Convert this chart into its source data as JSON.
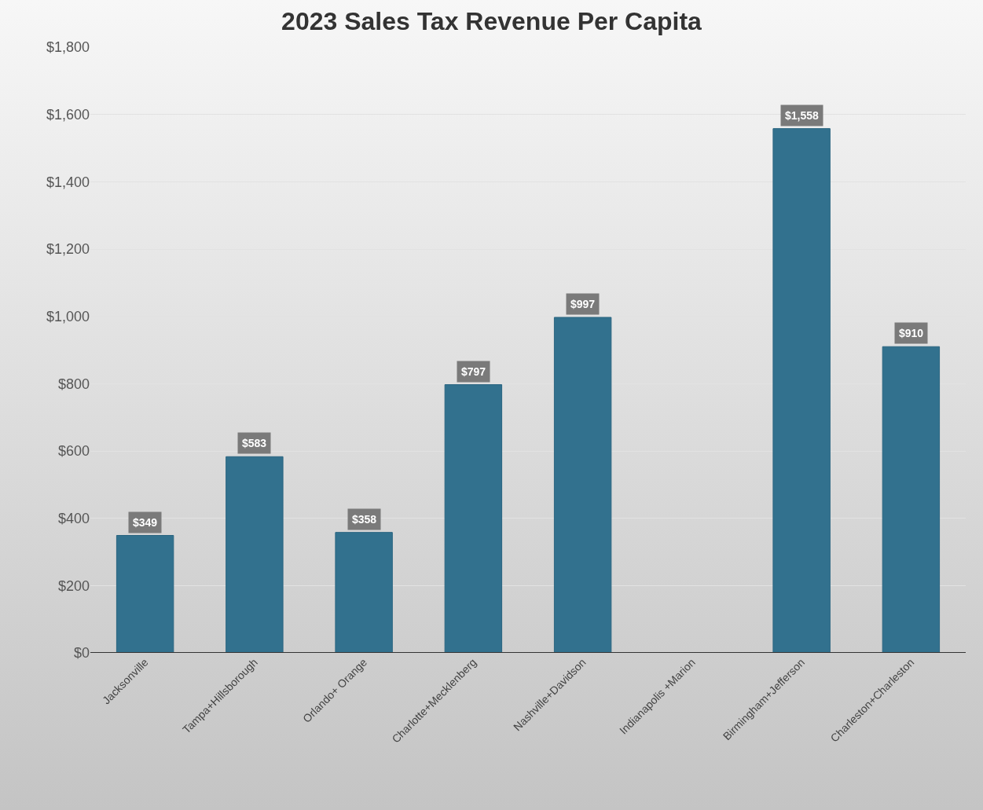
{
  "chart_data": {
    "type": "bar",
    "title": "2023 Sales Tax Revenue Per Capita",
    "categories": [
      "Jacksonville",
      "Tampa+Hillsborough",
      "Orlando+ Orange",
      "Charlotte+Mecklenberg",
      "Nashville+Davidson",
      "Indianapolis +Marion",
      "Birmingham+Jefferson",
      "Charleston+Charleston"
    ],
    "values": [
      349,
      583,
      358,
      797,
      997,
      0,
      1558,
      910
    ],
    "value_labels": [
      "$349",
      "$583",
      "$358",
      "$797",
      "$997",
      null,
      "$1,558",
      "$910"
    ],
    "color": "#32718e",
    "ylim": [
      0,
      1800
    ],
    "yticks": [
      {
        "value": 0,
        "label": "$0"
      },
      {
        "value": 200,
        "label": "$200"
      },
      {
        "value": 400,
        "label": "$400"
      },
      {
        "value": 600,
        "label": "$600"
      },
      {
        "value": 800,
        "label": "$800"
      },
      {
        "value": 1000,
        "label": "$1,000"
      },
      {
        "value": 1200,
        "label": "$1,200"
      },
      {
        "value": 1400,
        "label": "$1,400"
      },
      {
        "value": 1600,
        "label": "$1,600"
      },
      {
        "value": 1800,
        "label": "$1,800"
      }
    ],
    "grid": "y"
  }
}
